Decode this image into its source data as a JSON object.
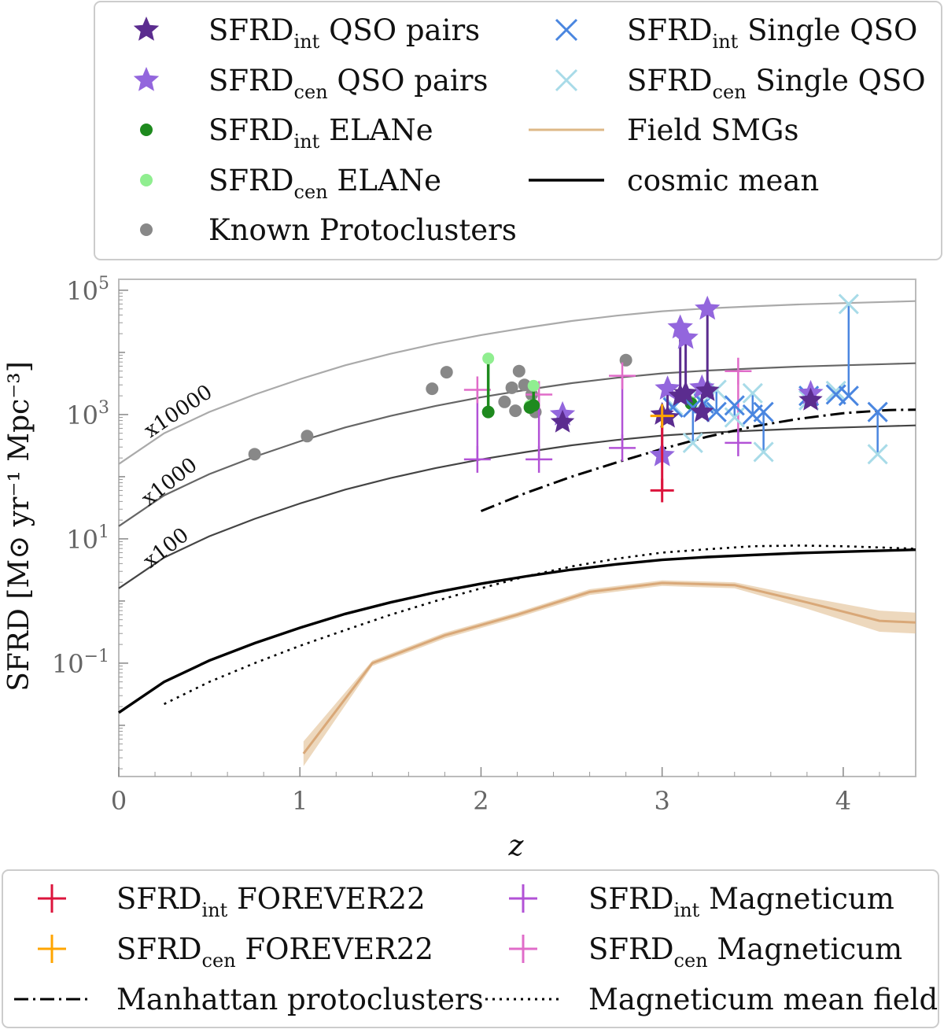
{
  "chart_data": {
    "type": "scatter",
    "xlabel": "z",
    "ylabel": "SFRD [M⊙ yr⁻¹ Mpc⁻³]",
    "xlim": [
      0,
      4.4
    ],
    "ylim": [
      0.0015,
      150000
    ],
    "yscale": "log",
    "x_ticks": [
      {
        "v": 0,
        "label": "0"
      },
      {
        "v": 1,
        "label": "1"
      },
      {
        "v": 2,
        "label": "2"
      },
      {
        "v": 3,
        "label": "3"
      },
      {
        "v": 4,
        "label": "4"
      }
    ],
    "y_ticks": [
      {
        "v": 0.1,
        "base": "10",
        "exp": "−1"
      },
      {
        "v": 10,
        "base": "10",
        "exp": "1"
      },
      {
        "v": 1000,
        "base": "10",
        "exp": "3"
      },
      {
        "v": 100000,
        "base": "10",
        "exp": "5"
      }
    ],
    "curve_labels": [
      "x100",
      "x1000",
      "x10000"
    ],
    "cosmic_mean": {
      "x": [
        0,
        0.25,
        0.5,
        0.75,
        1,
        1.25,
        1.5,
        1.75,
        2,
        2.25,
        2.5,
        2.75,
        3,
        3.25,
        3.5,
        3.75,
        4,
        4.25,
        4.4
      ],
      "y": [
        0.016,
        0.05,
        0.11,
        0.21,
        0.37,
        0.62,
        0.95,
        1.38,
        1.9,
        2.5,
        3.2,
        3.9,
        4.6,
        5.1,
        5.5,
        5.9,
        6.2,
        6.5,
        6.7
      ]
    },
    "scaled_means": [
      {
        "factor": 100,
        "color": "#444444"
      },
      {
        "factor": 1000,
        "color": "#666666"
      },
      {
        "factor": 10000,
        "color": "#aaaaaa"
      }
    ],
    "magneticum_mean_field": {
      "x": [
        0.25,
        0.5,
        0.75,
        1,
        1.25,
        1.5,
        1.75,
        2,
        2.25,
        2.5,
        2.75,
        3,
        3.25,
        3.5,
        3.75,
        4,
        4.25,
        4.4
      ],
      "y": [
        0.022,
        0.05,
        0.1,
        0.19,
        0.34,
        0.6,
        1.0,
        1.6,
        2.5,
        3.6,
        4.8,
        6.0,
        6.8,
        7.6,
        7.8,
        7.6,
        7.2,
        6.9
      ]
    },
    "manhattan_protoclusters": {
      "x": [
        2.0,
        2.25,
        2.5,
        2.75,
        3.0,
        3.25,
        3.5,
        3.75,
        4.0,
        4.25,
        4.4
      ],
      "y": [
        28,
        55,
        100,
        170,
        280,
        440,
        640,
        850,
        1050,
        1180,
        1200
      ]
    },
    "field_smgs": {
      "x": [
        1.02,
        1.4,
        1.8,
        2.2,
        2.6,
        3.0,
        3.4,
        3.8,
        4.2,
        4.4
      ],
      "y": [
        0.0035,
        0.1,
        0.28,
        0.6,
        1.4,
        1.95,
        1.8,
        0.95,
        0.48,
        0.45
      ],
      "y_low": [
        0.0022,
        0.09,
        0.25,
        0.54,
        1.25,
        1.75,
        1.6,
        0.75,
        0.32,
        0.3
      ],
      "y_high": [
        0.0055,
        0.11,
        0.31,
        0.66,
        1.55,
        2.15,
        2.0,
        1.15,
        0.7,
        0.65
      ]
    },
    "known_protoclusters": {
      "x": [
        0.75,
        1.04,
        1.73,
        1.81,
        2.13,
        2.17,
        2.19,
        2.21,
        2.24,
        2.28,
        2.3,
        2.8
      ],
      "y": [
        230,
        450,
        2600,
        4800,
        1600,
        2700,
        1150,
        5000,
        3000,
        2100,
        1100,
        7500
      ]
    },
    "elane": [
      {
        "z": 2.04,
        "int": 1100,
        "cen": 8000
      },
      {
        "z": 2.27,
        "int": 1300,
        "cen": 1400
      },
      {
        "z": 2.29,
        "int": 1400,
        "cen": 2900
      },
      {
        "z": 3.16,
        "int": 1500,
        "cen": 1600
      }
    ],
    "qso_pairs": [
      {
        "z": 2.45,
        "int": 750,
        "cen": 1000
      },
      {
        "z": 3.0,
        "int": 1000,
        "cen": 220
      },
      {
        "z": 3.03,
        "int": 900,
        "cen": 2600
      },
      {
        "z": 3.1,
        "int": 2000,
        "cen": 25000
      },
      {
        "z": 3.13,
        "int": 2200,
        "cen": 17000
      },
      {
        "z": 3.22,
        "int": 1100,
        "cen": 2700
      },
      {
        "z": 3.25,
        "int": 2400,
        "cen": 50000
      },
      {
        "z": 3.82,
        "int": 1700,
        "cen": 2200
      }
    ],
    "single_qso": [
      {
        "z": 3.06,
        "int": 1300,
        "cen": 1400
      },
      {
        "z": 3.17,
        "int": 1300,
        "cen": 350
      },
      {
        "z": 3.23,
        "int": 1500,
        "cen": 1600
      },
      {
        "z": 3.3,
        "int": 1100,
        "cen": 2500
      },
      {
        "z": 3.4,
        "int": 1400,
        "cen": 900
      },
      {
        "z": 3.5,
        "int": 1000,
        "cen": 2200
      },
      {
        "z": 3.56,
        "int": 1100,
        "cen": 250
      },
      {
        "z": 3.81,
        "int": 2000,
        "cen": 1700
      },
      {
        "z": 3.96,
        "int": 2100,
        "cen": 2400
      },
      {
        "z": 4.03,
        "int": 2000,
        "cen": 60000
      },
      {
        "z": 4.19,
        "int": 1100,
        "cen": 230
      }
    ],
    "magneticum": [
      {
        "z": 1.98,
        "int": 190,
        "cen": 2500
      },
      {
        "z": 2.32,
        "int": 190,
        "cen": 2100
      },
      {
        "z": 2.78,
        "int": 290,
        "cen": 4200
      },
      {
        "z": 3.42,
        "int": 350,
        "cen": 5000
      }
    ],
    "forever22": [
      {
        "z": 3.0,
        "int": 60,
        "cen": 950
      }
    ],
    "colors": {
      "qso_int": "#5b2c8f",
      "qso_cen": "#9366dd",
      "elane_int": "#1e8a1e",
      "elane_cen": "#90ee90",
      "single_int": "#4a86e0",
      "single_cen": "#a8dbe8",
      "proto": "#888888",
      "smg": "#deb887",
      "mag_int": "#b252d6",
      "mag_cen": "#e06cc9",
      "f22_int": "#dc143c",
      "f22_cen": "#ffa500"
    }
  },
  "legend_top": [
    {
      "key": "qso_int",
      "base": "SFRD",
      "sub": "int",
      "rest": " QSO pairs"
    },
    {
      "key": "qso_cen",
      "base": "SFRD",
      "sub": "cen",
      "rest": " QSO pairs"
    },
    {
      "key": "elane_int",
      "base": "SFRD",
      "sub": "int",
      "rest": " ELANe"
    },
    {
      "key": "elane_cen",
      "base": "SFRD",
      "sub": "cen",
      "rest": " ELANe"
    },
    {
      "key": "proto",
      "base": "Known Protoclusters",
      "sub": "",
      "rest": ""
    },
    {
      "key": "single_int",
      "base": "SFRD",
      "sub": "int",
      "rest": " Single QSO"
    },
    {
      "key": "single_cen",
      "base": "SFRD",
      "sub": "cen",
      "rest": " Single QSO"
    },
    {
      "key": "smg",
      "base": "Field SMGs",
      "sub": "",
      "rest": ""
    },
    {
      "key": "cosmic",
      "base": "cosmic mean",
      "sub": "",
      "rest": ""
    }
  ],
  "legend_bottom": [
    {
      "key": "f22_int",
      "base": "SFRD",
      "sub": "int",
      "rest": " FOREVER22"
    },
    {
      "key": "f22_cen",
      "base": "SFRD",
      "sub": "cen",
      "rest": " FOREVER22"
    },
    {
      "key": "manhattan",
      "base": "Manhattan protoclusters",
      "sub": "",
      "rest": ""
    },
    {
      "key": "mag_int",
      "base": "SFRD",
      "sub": "int",
      "rest": " Magneticum"
    },
    {
      "key": "mag_cen",
      "base": "SFRD",
      "sub": "cen",
      "rest": " Magneticum"
    },
    {
      "key": "magfield",
      "base": "Magneticum mean field",
      "sub": "",
      "rest": ""
    }
  ]
}
